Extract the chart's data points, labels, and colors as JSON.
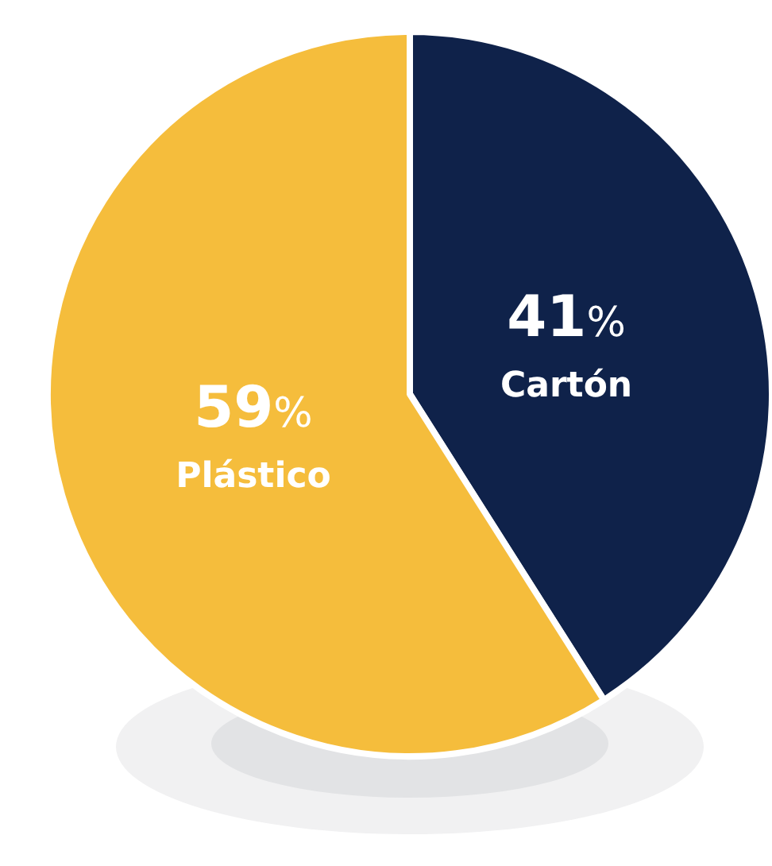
{
  "chart_data": {
    "type": "pie",
    "categories": [
      "Cartón",
      "Plástico"
    ],
    "values": [
      41,
      59
    ],
    "colors": [
      "#0f224a",
      "#f5bd3c"
    ],
    "value_labels": [
      "41%",
      "59%"
    ]
  }
}
